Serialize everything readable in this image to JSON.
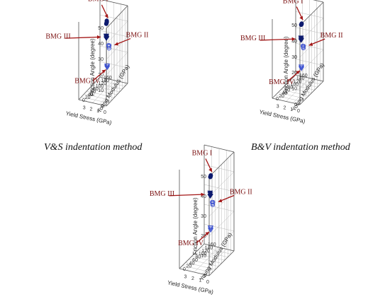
{
  "figure": {
    "captions": [
      "V&S indentation method",
      "B&V indentation method"
    ]
  },
  "colors": {
    "metallic_filled": "#0d1a6e",
    "open_markers": "#3a4fd0",
    "annotation_arrow": "#a31515",
    "annotation_text": "#7a0f0f",
    "axes": "#555555",
    "grid": "#bbbbbb"
  },
  "chart_data": [
    {
      "type": "scatter",
      "subtype": "3d",
      "title": "V&S indentation method",
      "xlabel": "Yield Stress (GPa)",
      "ylabel": "Young Modulus (GPa)",
      "zlabel": "Friction Angle (degree)",
      "xlim": [
        0,
        4
      ],
      "ylim": [
        0,
        160
      ],
      "zlim": [
        0,
        50
      ],
      "xticks": [
        0,
        1,
        2,
        3
      ],
      "yticks": [
        0,
        20,
        40,
        60,
        80,
        100,
        120,
        140,
        160
      ],
      "zticks": [
        0,
        10,
        20,
        30,
        40,
        50
      ],
      "grid": true,
      "series": [
        {
          "name": "BMG I",
          "marker": "circle",
          "filled": true,
          "points": [
            [
              1.8,
              95,
              43
            ],
            [
              1.7,
              92,
              44
            ],
            [
              1.9,
              98,
              42
            ],
            [
              1.75,
              94,
              44.5
            ]
          ]
        },
        {
          "name": "BMG II",
          "marker": "circle",
          "filled": false,
          "points": [
            [
              0.8,
              60,
              32
            ],
            [
              0.7,
              58,
              33
            ],
            [
              0.9,
              62,
              32.5
            ],
            [
              0.75,
              59,
              31
            ]
          ]
        },
        {
          "name": "BMG III",
          "marker": "triangle-down",
          "filled": true,
          "points": [
            [
              1.7,
              88,
              35
            ],
            [
              1.65,
              86,
              34
            ],
            [
              1.75,
              90,
              35.5
            ],
            [
              1.6,
              85,
              34.5
            ]
          ]
        },
        {
          "name": "BMG IV",
          "marker": "triangle-down",
          "filled": false,
          "points": [
            [
              0.85,
              50,
              20
            ],
            [
              0.8,
              48,
              21
            ],
            [
              0.9,
              52,
              20.5
            ],
            [
              0.82,
              49,
              19.5
            ]
          ]
        }
      ]
    },
    {
      "type": "scatter",
      "subtype": "3d",
      "title": "B&V indentation method",
      "xlabel": "Yield Stress (GPa)",
      "ylabel": "Young Modulus (GPa)",
      "zlabel": "Friction Angle (degree)",
      "xlim": [
        0,
        4
      ],
      "ylim": [
        0,
        160
      ],
      "zlim": [
        0,
        50
      ],
      "xticks": [
        0,
        1,
        2,
        3
      ],
      "yticks": [
        0,
        20,
        40,
        60,
        80,
        100,
        120,
        140,
        160
      ],
      "zticks": [
        0,
        10,
        20,
        30,
        40,
        50
      ],
      "grid": true,
      "series": [
        {
          "name": "BMG I",
          "marker": "circle",
          "filled": true,
          "points": [
            [
              1.8,
              95,
              40
            ],
            [
              1.7,
              92,
              41
            ],
            [
              1.9,
              98,
              39.5
            ],
            [
              1.75,
              94,
              40.5
            ]
          ]
        },
        {
          "name": "BMG II",
          "marker": "circle",
          "filled": false,
          "points": [
            [
              0.8,
              60,
              30
            ],
            [
              0.7,
              58,
              31
            ],
            [
              0.9,
              62,
              30.5
            ],
            [
              0.75,
              59,
              29.5
            ]
          ]
        },
        {
          "name": "BMG III",
          "marker": "triangle-down",
          "filled": true,
          "points": [
            [
              1.7,
              88,
              32
            ],
            [
              1.65,
              86,
              31
            ],
            [
              1.75,
              90,
              32.5
            ],
            [
              1.6,
              85,
              31.5
            ]
          ]
        },
        {
          "name": "BMG IV",
          "marker": "triangle-down",
          "filled": false,
          "points": [
            [
              0.85,
              50,
              18
            ],
            [
              0.8,
              48,
              19
            ],
            [
              0.9,
              52,
              18.5
            ],
            [
              0.82,
              49,
              17.5
            ]
          ]
        }
      ]
    },
    {
      "type": "scatter",
      "subtype": "3d",
      "xlabel": "Yield Stress (GPa)",
      "ylabel": "Young Modulus (GPa)",
      "zlabel": "Friction Angle (degree)",
      "xlim": [
        0,
        4
      ],
      "ylim": [
        0,
        160
      ],
      "zlim": [
        0,
        50
      ],
      "xticks": [
        0,
        1,
        2,
        3
      ],
      "yticks": [
        0,
        20,
        40,
        60,
        80,
        100,
        120,
        140,
        160
      ],
      "zticks": [
        0,
        10,
        20,
        30,
        40,
        50
      ],
      "grid": true,
      "series": [
        {
          "name": "BMG I",
          "marker": "circle",
          "filled": true,
          "points": [
            [
              1.8,
              95,
              41
            ],
            [
              1.7,
              92,
              42
            ],
            [
              1.9,
              98,
              40.5
            ],
            [
              1.75,
              94,
              41.5
            ]
          ]
        },
        {
          "name": "BMG II",
          "marker": "circle",
          "filled": false,
          "points": [
            [
              0.8,
              60,
              31
            ],
            [
              0.7,
              58,
              32
            ],
            [
              0.9,
              62,
              31.5
            ],
            [
              0.75,
              59,
              30.5
            ]
          ]
        },
        {
          "name": "BMG III",
          "marker": "triangle-down",
          "filled": true,
          "points": [
            [
              1.7,
              88,
              33
            ],
            [
              1.65,
              86,
              32
            ],
            [
              1.75,
              90,
              33.5
            ],
            [
              1.6,
              85,
              32.5
            ]
          ]
        },
        {
          "name": "BMG IV",
          "marker": "triangle-down",
          "filled": false,
          "points": [
            [
              0.85,
              50,
              19
            ],
            [
              0.8,
              48,
              20
            ],
            [
              0.9,
              52,
              19.5
            ],
            [
              0.82,
              49,
              18.5
            ]
          ]
        }
      ]
    }
  ]
}
